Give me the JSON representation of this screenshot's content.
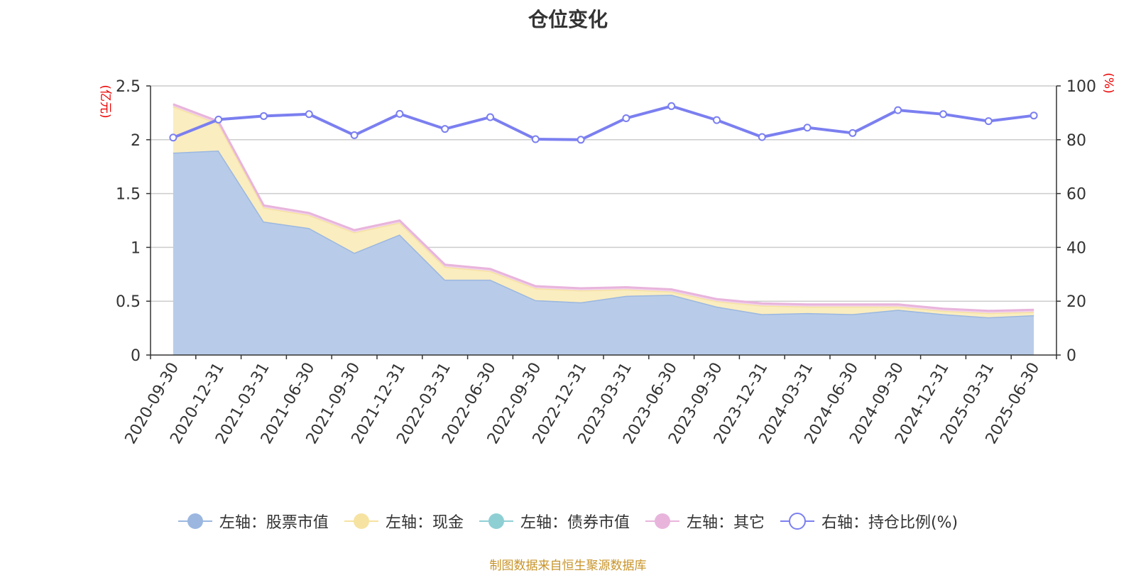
{
  "chart_data": {
    "type": "area",
    "title": "仓位变化",
    "ylabel": "(亿元)",
    "y2label": "(%)",
    "ylim": [
      0,
      2.5
    ],
    "y2lim": [
      0,
      100
    ],
    "yticks": [
      "0",
      "0.5",
      "1",
      "1.5",
      "2",
      "2.5"
    ],
    "y2ticks": [
      "0",
      "20",
      "40",
      "60",
      "80",
      "100"
    ],
    "grid": true,
    "legend_position": "bottom",
    "categories": [
      "2020-09-30",
      "2020-12-31",
      "2021-03-31",
      "2021-06-30",
      "2021-09-30",
      "2021-12-31",
      "2022-03-31",
      "2022-06-30",
      "2022-09-30",
      "2022-12-31",
      "2023-03-31",
      "2023-06-30",
      "2023-09-30",
      "2023-12-31",
      "2024-03-31",
      "2024-06-30",
      "2024-09-30",
      "2024-12-31",
      "2025-03-31",
      "2025-06-30"
    ],
    "series": [
      {
        "name": "左轴：股票市值",
        "axis": "left",
        "type": "area",
        "color": "#9bb7e0",
        "fill": "#b8cce9",
        "values": [
          1.88,
          1.9,
          1.24,
          1.18,
          0.95,
          1.12,
          0.7,
          0.7,
          0.51,
          0.49,
          0.55,
          0.56,
          0.45,
          0.38,
          0.39,
          0.38,
          0.42,
          0.38,
          0.35,
          0.37
        ]
      },
      {
        "name": "左轴：现金",
        "axis": "left",
        "type": "area",
        "color": "#f6e3a1",
        "fill": "#faedc0",
        "values": [
          0.43,
          0.25,
          0.13,
          0.12,
          0.19,
          0.11,
          0.12,
          0.08,
          0.11,
          0.11,
          0.06,
          0.03,
          0.05,
          0.08,
          0.06,
          0.07,
          0.03,
          0.03,
          0.04,
          0.03
        ]
      },
      {
        "name": "左轴：债券市值",
        "axis": "left",
        "type": "area",
        "color": "#8ecfd4",
        "fill": "#b5e0e3",
        "values": [
          0,
          0,
          0,
          0,
          0,
          0,
          0,
          0,
          0,
          0,
          0,
          0,
          0,
          0,
          0,
          0,
          0,
          0,
          0,
          0
        ]
      },
      {
        "name": "左轴：其它",
        "axis": "left",
        "type": "area",
        "color": "#e8b4dc",
        "fill": "#f2d3ea",
        "values": [
          0.02,
          0.02,
          0.02,
          0.02,
          0.02,
          0.02,
          0.02,
          0.02,
          0.02,
          0.02,
          0.02,
          0.02,
          0.02,
          0.02,
          0.02,
          0.02,
          0.02,
          0.02,
          0.02,
          0.02
        ]
      },
      {
        "name": "右轴：持仓比例(%)",
        "axis": "right",
        "type": "line",
        "color": "#7b7ff0",
        "values": [
          80.8,
          87.5,
          88.8,
          89.5,
          81.7,
          89.6,
          84.0,
          88.4,
          80.2,
          80.0,
          88.0,
          92.5,
          87.3,
          81.0,
          84.5,
          82.5,
          91.0,
          89.5,
          86.9,
          89.0
        ]
      }
    ]
  },
  "source": "制图数据来自恒生聚源数据库"
}
